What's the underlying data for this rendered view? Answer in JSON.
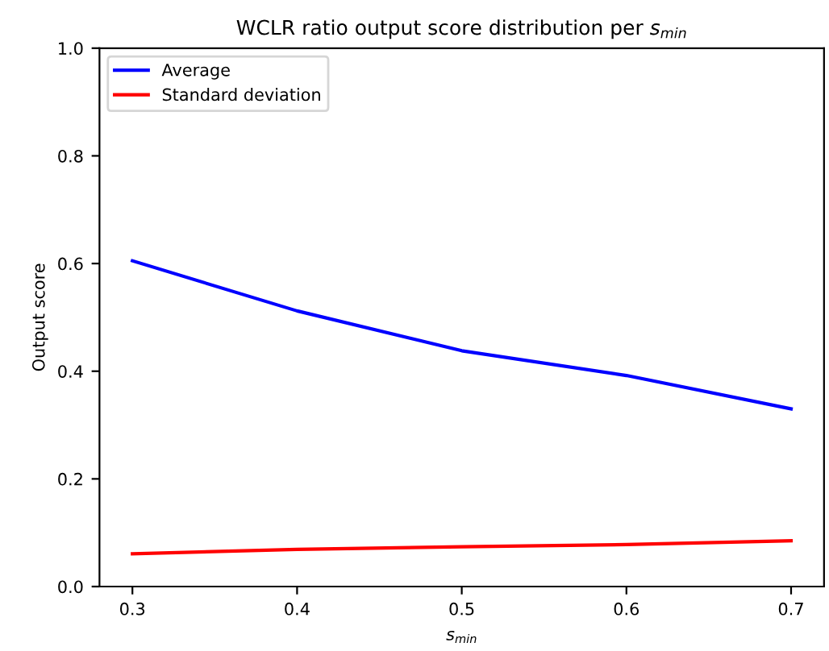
{
  "chart_data": {
    "type": "line",
    "title": "WCLR ratio output score distribution per s$_{min}$",
    "xlabel": "s$_{min}$",
    "ylabel": "Output score",
    "x": [
      0.3,
      0.4,
      0.5,
      0.6,
      0.7
    ],
    "series": [
      {
        "name": "Average",
        "color": "#0000ff",
        "values": [
          0.605,
          0.512,
          0.438,
          0.392,
          0.33
        ]
      },
      {
        "name": "Standard deviation",
        "color": "#ff0000",
        "values": [
          0.061,
          0.069,
          0.074,
          0.078,
          0.085
        ]
      }
    ],
    "xlim": [
      0.28,
      0.72
    ],
    "xticks": [
      0.3,
      0.4,
      0.5,
      0.6,
      0.7
    ],
    "ylim": [
      0,
      1
    ],
    "yticks": [
      {
        "value": 0,
        "label": "0.0"
      },
      0.2,
      0.4,
      0.6,
      0.8,
      {
        "value": 1,
        "label": "1.0"
      }
    ],
    "grid": false,
    "legend": "top left",
    "marker": "none",
    "line_style": "solid"
  }
}
